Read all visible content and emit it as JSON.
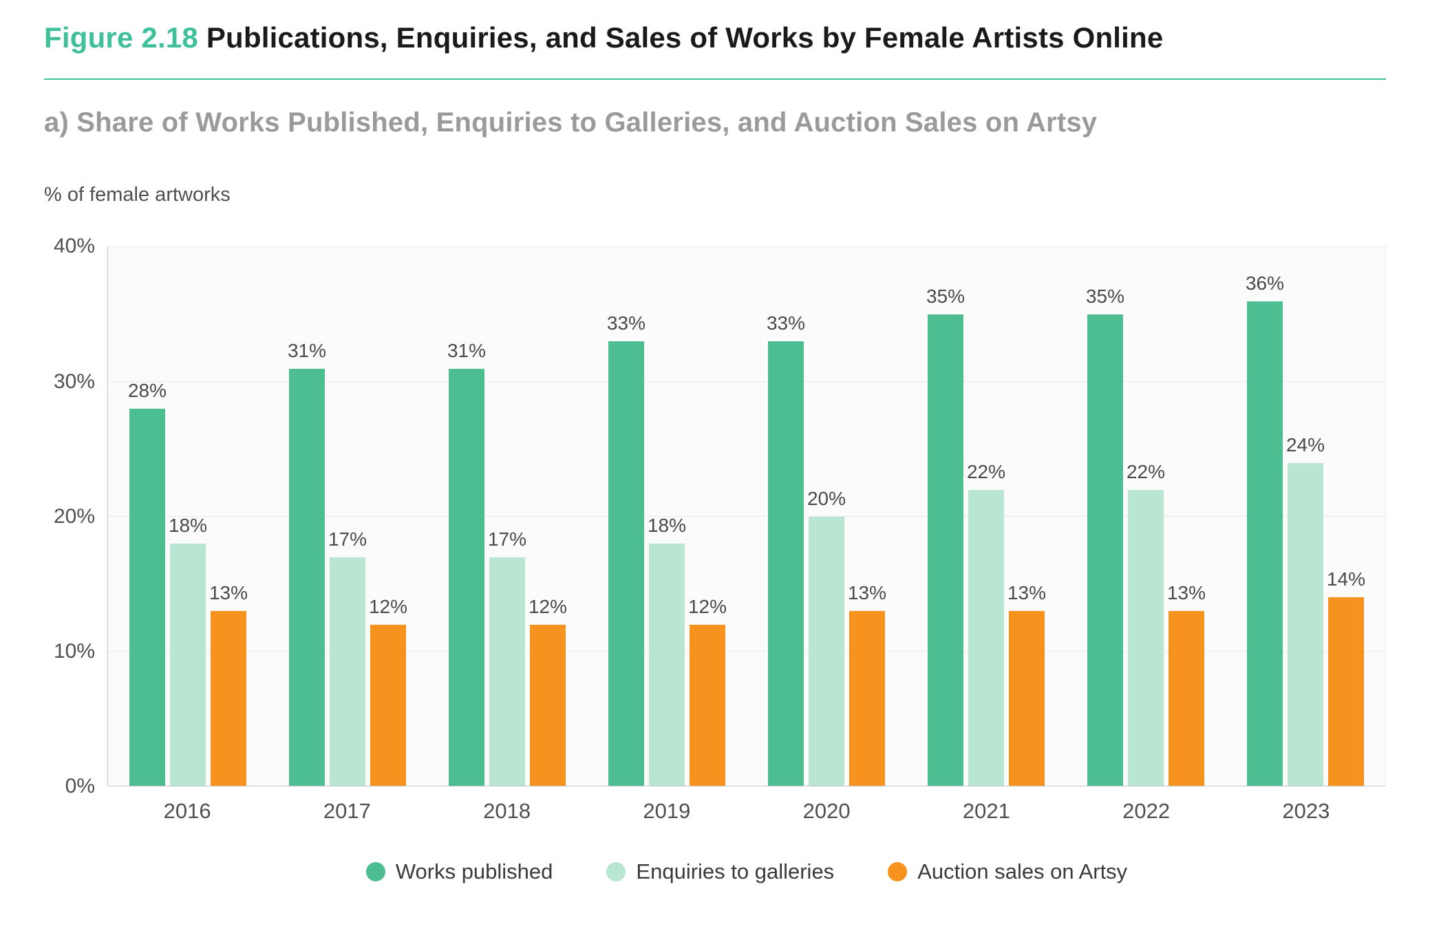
{
  "figure": {
    "label": "Figure 2.18",
    "title": "Publications, Enquiries, and Sales of Works by  Female Artists Online",
    "subtitle": "a) Share of Works Published, Enquiries to Galleries, and Auction Sales on Artsy",
    "axis_note": "% of female artworks",
    "accent_color": "#3FBF9A"
  },
  "chart_data": {
    "type": "bar",
    "title": "Publications, Enquiries, and Sales of Works by Female Artists Online",
    "subtitle": "a) Share of Works Published, Enquiries to Galleries, and Auction Sales on Artsy",
    "ylabel": "% of female artworks",
    "xlabel": "",
    "ylim": [
      0,
      40
    ],
    "yticks": [
      "0%",
      "10%",
      "20%",
      "30%",
      "40%"
    ],
    "grid": true,
    "legend_position": "bottom",
    "categories": [
      "2016",
      "2017",
      "2018",
      "2019",
      "2020",
      "2021",
      "2022",
      "2023"
    ],
    "series": [
      {
        "name": "Works published",
        "color": "#4CBE91",
        "values": [
          28,
          31,
          31,
          33,
          33,
          35,
          35,
          36
        ],
        "labels": [
          "28%",
          "31%",
          "31%",
          "33%",
          "33%",
          "35%",
          "35%",
          "36%"
        ]
      },
      {
        "name": "Enquiries to galleries",
        "color": "#B9E5D3",
        "values": [
          18,
          17,
          17,
          18,
          20,
          22,
          22,
          24
        ],
        "labels": [
          "18%",
          "17%",
          "17%",
          "18%",
          "20%",
          "22%",
          "22%",
          "24%"
        ]
      },
      {
        "name": "Auction sales on Artsy",
        "color": "#F6921E",
        "values": [
          13,
          12,
          12,
          12,
          13,
          13,
          13,
          14
        ],
        "labels": [
          "13%",
          "12%",
          "12%",
          "12%",
          "13%",
          "13%",
          "13%",
          "14%"
        ]
      }
    ]
  }
}
